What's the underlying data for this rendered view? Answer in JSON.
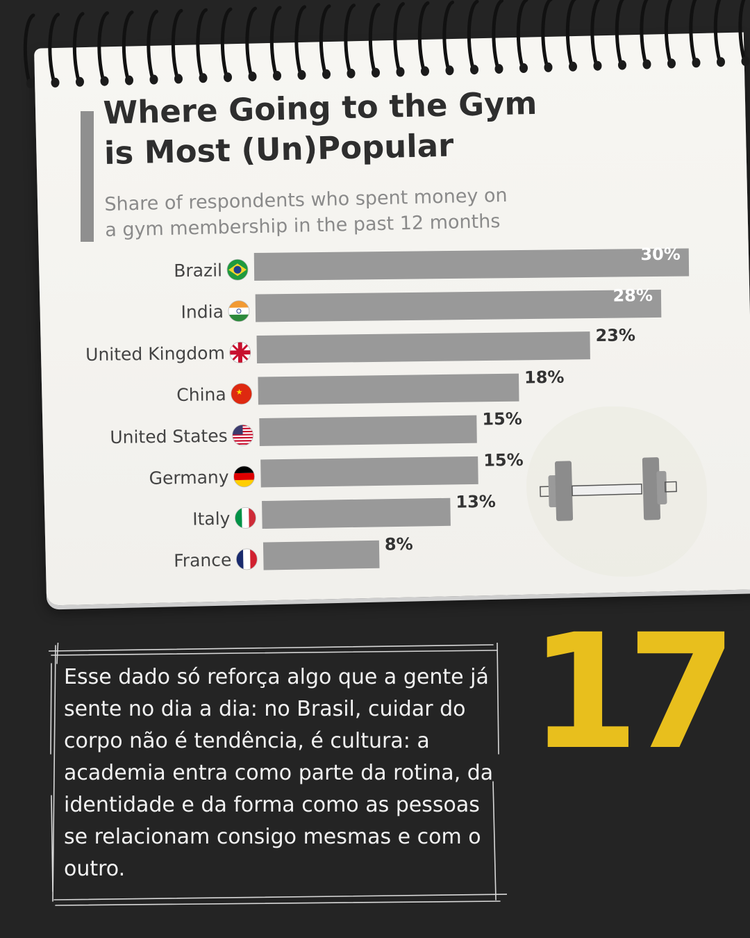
{
  "chart_data": {
    "type": "bar",
    "orientation": "horizontal",
    "title": "Where Going to the Gym\nis Most (Un)Popular",
    "subtitle": "Share of respondents who spent money on\na gym membership in the past 12 months",
    "categories": [
      "Brazil",
      "India",
      "United Kingdom",
      "China",
      "United States",
      "Germany",
      "Italy",
      "France"
    ],
    "values": [
      30,
      28,
      23,
      18,
      15,
      15,
      13,
      8
    ],
    "data_labels": [
      "30%",
      "28%",
      "23%",
      "18%",
      "15%",
      "15%",
      "13%",
      "8%"
    ],
    "flags": [
      "brazil-flag-icon",
      "india-flag-icon",
      "uk-flag-icon",
      "china-flag-icon",
      "usa-flag-icon",
      "germany-flag-icon",
      "italy-flag-icon",
      "france-flag-icon"
    ],
    "xlim": [
      0,
      30
    ],
    "bar_color": "#999999",
    "grid": false
  },
  "commentary": {
    "text": "Esse dado só reforça algo que a gente já sente no dia a dia: no Brasil, cuidar do corpo não é tendência, é cultura: a academia entra como parte da rotina, da identidade e da forma como as pessoas se relacionam consigo mesmas e com o outro."
  },
  "page_number": "17",
  "colors": {
    "background": "#242424",
    "paper": "#f3f2ee",
    "accent_yellow": "#e8bf1d",
    "title": "#2e2e2e",
    "subtitle": "#8a8a8a"
  },
  "decorations": {
    "dumbbell_icon": "dumbbell-icon",
    "spiral_binding": "spiral-binding-icon"
  }
}
